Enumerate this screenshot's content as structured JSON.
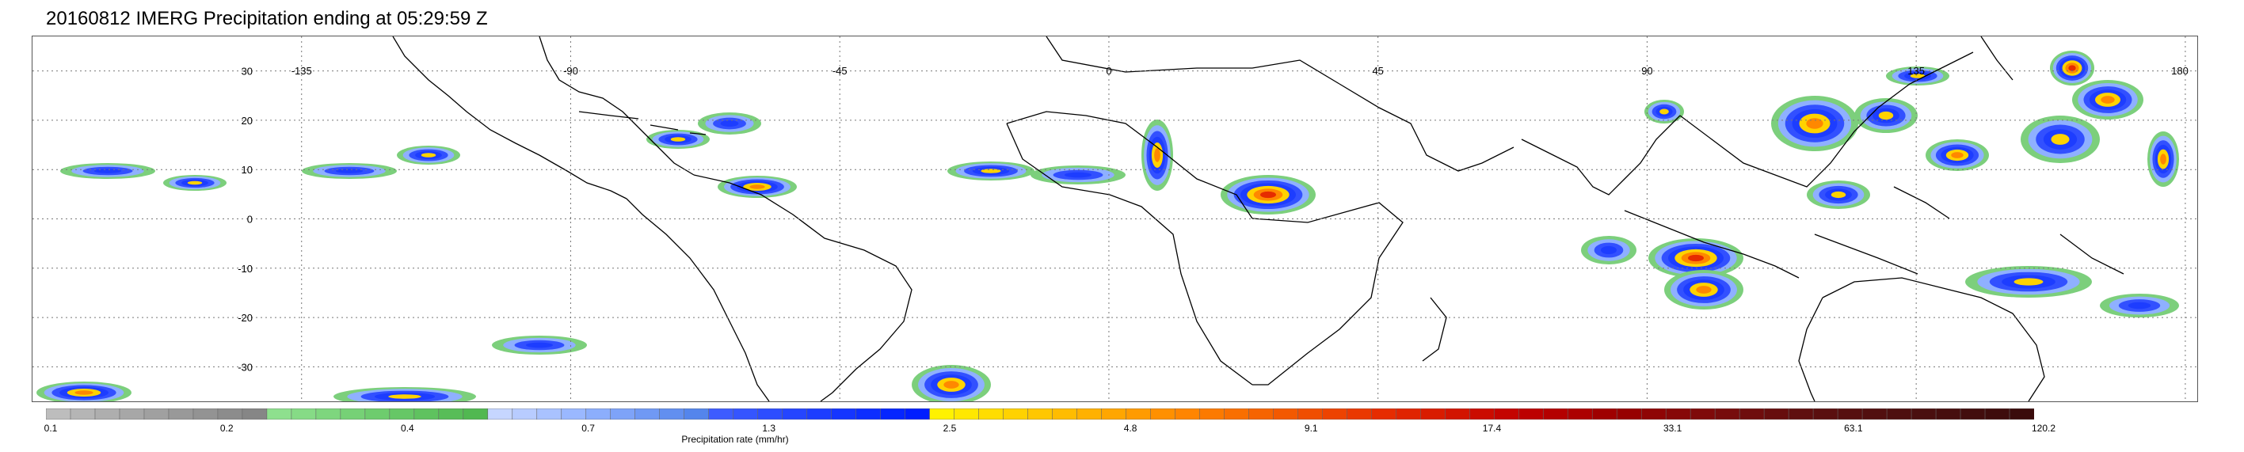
{
  "title": "20160812 IMERG Precipitation ending at 05:29:59 Z",
  "map": {
    "lon_labels": [
      "-135",
      "-90",
      "-45",
      "0",
      "45",
      "90",
      "135",
      "180"
    ],
    "lon_values": [
      -135,
      -90,
      -45,
      0,
      45,
      90,
      135,
      180
    ],
    "lat_labels": [
      "30",
      "20",
      "10",
      "0",
      "-10",
      "-20",
      "-30"
    ],
    "lat_values": [
      30,
      20,
      10,
      0,
      -10,
      -20,
      -30
    ],
    "lon_range": [
      -180,
      182
    ],
    "lat_range": [
      -37,
      37
    ],
    "grid": "dotted"
  },
  "colorbar": {
    "title": "Precipitation rate (mm/hr)",
    "labels": [
      "0.1",
      "0.2",
      "0.4",
      "0.7",
      "1.3",
      "2.5",
      "4.8",
      "9.1",
      "17.4",
      "33.1",
      "63.1",
      "120.2"
    ],
    "segments": [
      [
        "#bdbdbd",
        "#b5b5b5",
        "#aeaeae",
        "#a7a7a7",
        "#a0a0a0",
        "#999999",
        "#939393",
        "#8c8c8c",
        "#868686"
      ],
      [
        "#8ee08e",
        "#86db86",
        "#7ed67e",
        "#76d176",
        "#6ecc6e",
        "#66c766",
        "#5fc25f",
        "#58bd58",
        "#51b851"
      ],
      [
        "#c6d6ff",
        "#b8ccff",
        "#a9c2ff",
        "#9ab8ff",
        "#8caefc",
        "#7ea3f8",
        "#7099f4",
        "#628ff0",
        "#5485ec"
      ],
      [
        "#3d5cff",
        "#3555ff",
        "#2d4dff",
        "#2545ff",
        "#1d3dff",
        "#1535ff",
        "#0d2eff",
        "#0526ff",
        "#001eff"
      ],
      [
        "#fff200",
        "#ffe800",
        "#ffdd00",
        "#ffd200",
        "#ffc700",
        "#ffbc00",
        "#ffb100",
        "#ffa600",
        "#ff9b00"
      ],
      [
        "#ff9000",
        "#ff8500",
        "#fc7a00",
        "#f96f00",
        "#f66400",
        "#f35900",
        "#f04e00",
        "#ed4300",
        "#ea3800"
      ],
      [
        "#e62c00",
        "#e02400",
        "#d91c00",
        "#d21400",
        "#cb0c00",
        "#c40400",
        "#bc0000",
        "#b40000",
        "#ac0000"
      ],
      [
        "#9f0000",
        "#970000",
        "#8f0505",
        "#870808",
        "#7f0a0a",
        "#770c0c",
        "#6f0d0d",
        "#670e0e",
        "#5f0f0f"
      ],
      [
        "#5a0f0f",
        "#560f0f",
        "#520f0f",
        "#4e0f0f",
        "#4a0f0f",
        "#460e0e",
        "#420d0d",
        "#3e0c0c",
        "#3a0b0b"
      ]
    ]
  }
}
